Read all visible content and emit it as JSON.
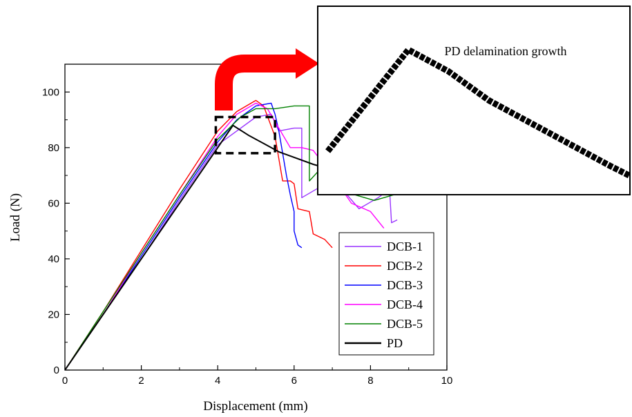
{
  "chart_data": {
    "type": "line",
    "title": "",
    "xlabel": "Displacement (mm)",
    "ylabel": "Load (N)",
    "xlim": [
      0,
      10
    ],
    "ylim": [
      0,
      110
    ],
    "xticks": [
      0,
      2,
      4,
      6,
      8,
      10
    ],
    "yticks": [
      0,
      20,
      40,
      60,
      80,
      100
    ],
    "grid": false,
    "legend_position": "bottom-right",
    "series": [
      {
        "name": "DCB-1",
        "color": "#9933ff",
        "points": [
          [
            0,
            0
          ],
          [
            1,
            20
          ],
          [
            2,
            40
          ],
          [
            3,
            61
          ],
          [
            4,
            81
          ],
          [
            4.5,
            86
          ],
          [
            5,
            91
          ],
          [
            5.4,
            92
          ],
          [
            5.6,
            86
          ],
          [
            6.0,
            87
          ],
          [
            6.2,
            87
          ],
          [
            6.2,
            62
          ],
          [
            6.7,
            66
          ],
          [
            7.0,
            70
          ],
          [
            7.2,
            66
          ],
          [
            7.7,
            58
          ],
          [
            8.2,
            62
          ],
          [
            8.5,
            65
          ],
          [
            8.55,
            53
          ],
          [
            8.7,
            54
          ]
        ]
      },
      {
        "name": "DCB-2",
        "color": "#ff0000",
        "points": [
          [
            0,
            0
          ],
          [
            1,
            21
          ],
          [
            2,
            43
          ],
          [
            3,
            65
          ],
          [
            4,
            86
          ],
          [
            4.5,
            93
          ],
          [
            5.0,
            97
          ],
          [
            5.2,
            95
          ],
          [
            5.5,
            84
          ],
          [
            5.6,
            76
          ],
          [
            5.7,
            68
          ],
          [
            5.9,
            68
          ],
          [
            6.0,
            67
          ],
          [
            6.1,
            58
          ],
          [
            6.4,
            57
          ],
          [
            6.5,
            49
          ],
          [
            6.8,
            47
          ],
          [
            7.0,
            44
          ]
        ]
      },
      {
        "name": "DCB-3",
        "color": "#0000ff",
        "points": [
          [
            0,
            0
          ],
          [
            1,
            20
          ],
          [
            2,
            41
          ],
          [
            3,
            62
          ],
          [
            4,
            82
          ],
          [
            4.5,
            90
          ],
          [
            5.0,
            95
          ],
          [
            5.4,
            96
          ],
          [
            5.5,
            92
          ],
          [
            5.6,
            86
          ],
          [
            5.7,
            78
          ],
          [
            5.8,
            70
          ],
          [
            5.9,
            63
          ],
          [
            6.0,
            57
          ],
          [
            6.0,
            50
          ],
          [
            6.1,
            45
          ],
          [
            6.2,
            44
          ]
        ]
      },
      {
        "name": "DCB-4",
        "color": "#ff00ff",
        "points": [
          [
            0,
            0
          ],
          [
            1,
            20
          ],
          [
            2,
            42
          ],
          [
            3,
            63
          ],
          [
            4,
            84
          ],
          [
            4.5,
            92
          ],
          [
            5.0,
            96
          ],
          [
            5.3,
            94
          ],
          [
            5.6,
            87
          ],
          [
            5.9,
            80
          ],
          [
            6.2,
            80
          ],
          [
            6.5,
            79
          ],
          [
            7.0,
            70
          ],
          [
            7.5,
            60
          ],
          [
            8.0,
            57
          ],
          [
            8.35,
            51
          ]
        ]
      },
      {
        "name": "DCB-5",
        "color": "#008000",
        "points": [
          [
            0,
            0
          ],
          [
            1,
            21
          ],
          [
            2,
            42
          ],
          [
            3,
            63
          ],
          [
            4,
            83
          ],
          [
            4.6,
            91
          ],
          [
            5.0,
            94
          ],
          [
            5.5,
            94
          ],
          [
            6.0,
            95
          ],
          [
            6.4,
            95
          ],
          [
            6.4,
            68
          ],
          [
            6.8,
            74
          ],
          [
            7.0,
            73
          ],
          [
            7.2,
            73
          ],
          [
            7.6,
            63
          ],
          [
            8.1,
            61
          ],
          [
            8.6,
            63
          ],
          [
            8.8,
            66
          ]
        ]
      },
      {
        "name": "PD",
        "color": "#000000",
        "points": [
          [
            0,
            0
          ],
          [
            1,
            20
          ],
          [
            2,
            40
          ],
          [
            3,
            60
          ],
          [
            4,
            80
          ],
          [
            4.4,
            88
          ],
          [
            4.8,
            84.5
          ],
          [
            5.2,
            81.5
          ],
          [
            5.6,
            78.5
          ],
          [
            6.0,
            76.5
          ],
          [
            6.5,
            74
          ],
          [
            7.0,
            72
          ]
        ]
      }
    ],
    "inset": {
      "label": "PD delamination growth",
      "x_range": [
        3.95,
        5.5
      ],
      "y_range": [
        78,
        91
      ],
      "curve": [
        [
          4.0,
          81
        ],
        [
          4.4,
          88
        ],
        [
          4.6,
          86.5
        ],
        [
          4.8,
          84.5
        ],
        [
          5.0,
          83
        ],
        [
          5.2,
          81.5
        ],
        [
          5.4,
          80
        ],
        [
          5.5,
          79.3
        ]
      ]
    }
  }
}
